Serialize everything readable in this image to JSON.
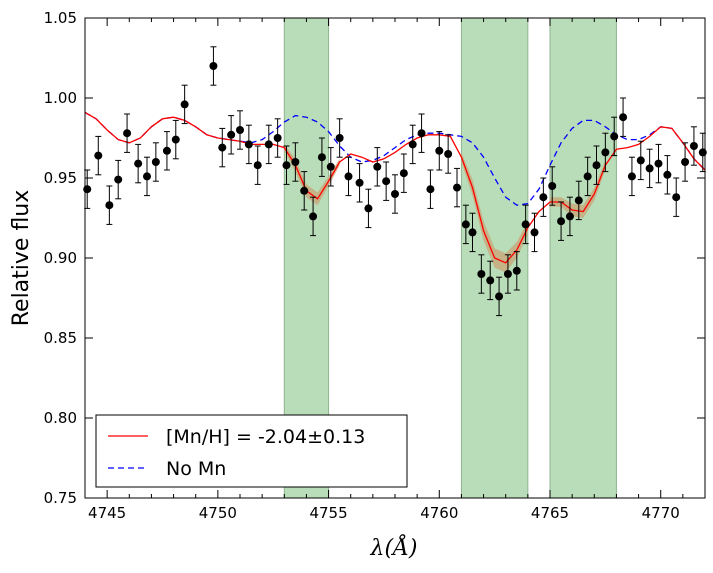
{
  "chart_data": {
    "type": "line",
    "title": "",
    "xlabel": "λ(Å)",
    "ylabel": "Relative flux",
    "xlim": [
      4744,
      4772
    ],
    "ylim": [
      0.75,
      1.05
    ],
    "xticks": [
      4745,
      4750,
      4755,
      4760,
      4765,
      4770
    ],
    "yticks": [
      0.75,
      0.8,
      0.85,
      0.9,
      0.95,
      1.0,
      1.05
    ],
    "xtick_labels": [
      "4745",
      "4750",
      "4755",
      "4760",
      "4765",
      "4770"
    ],
    "ytick_labels": [
      "0.75",
      "0.80",
      "0.85",
      "0.90",
      "0.95",
      "1.00",
      "1.05"
    ],
    "grid": false,
    "legend_position": "bottom-left",
    "shaded_regions": [
      {
        "x0": 4753.0,
        "x1": 4755.0,
        "color": "#b9dcb9"
      },
      {
        "x0": 4761.0,
        "x1": 4764.0,
        "color": "#b9dcb9"
      },
      {
        "x0": 4765.0,
        "x1": 4768.0,
        "color": "#b9dcb9"
      }
    ],
    "series": [
      {
        "name": "[Mn/H] = -2.04±0.13",
        "style": "solid",
        "color": "#ff0000",
        "x": [
          4744.0,
          4744.5,
          4745.0,
          4745.5,
          4746.0,
          4746.5,
          4747.0,
          4747.5,
          4748.0,
          4748.5,
          4749.0,
          4749.5,
          4750.0,
          4750.5,
          4751.0,
          4751.5,
          4752.0,
          4752.5,
          4753.0,
          4753.5,
          4754.0,
          4754.5,
          4755.0,
          4755.5,
          4756.0,
          4756.5,
          4757.0,
          4757.5,
          4758.0,
          4758.5,
          4759.0,
          4759.5,
          4760.0,
          4760.5,
          4761.0,
          4761.5,
          4762.0,
          4762.5,
          4763.0,
          4763.5,
          4764.0,
          4764.5,
          4765.0,
          4765.5,
          4766.0,
          4766.5,
          4767.0,
          4767.5,
          4768.0,
          4768.5,
          4769.0,
          4769.5,
          4770.0,
          4770.5,
          4771.0,
          4771.5,
          4772.0
        ],
        "y": [
          0.991,
          0.987,
          0.98,
          0.974,
          0.972,
          0.975,
          0.982,
          0.987,
          0.988,
          0.986,
          0.982,
          0.977,
          0.975,
          0.974,
          0.973,
          0.971,
          0.971,
          0.971,
          0.969,
          0.958,
          0.942,
          0.937,
          0.948,
          0.96,
          0.965,
          0.963,
          0.96,
          0.962,
          0.966,
          0.971,
          0.975,
          0.977,
          0.977,
          0.976,
          0.963,
          0.944,
          0.917,
          0.9,
          0.897,
          0.905,
          0.919,
          0.929,
          0.935,
          0.935,
          0.93,
          0.929,
          0.94,
          0.958,
          0.968,
          0.969,
          0.971,
          0.976,
          0.982,
          0.981,
          0.972,
          0.962,
          0.955
        ]
      },
      {
        "name": "No Mn",
        "style": "dashed",
        "color": "#0000ff",
        "x": [
          4744.0,
          4744.5,
          4745.0,
          4745.5,
          4746.0,
          4746.5,
          4747.0,
          4747.5,
          4748.0,
          4748.5,
          4749.0,
          4749.5,
          4750.0,
          4750.5,
          4751.0,
          4751.5,
          4752.0,
          4752.5,
          4753.0,
          4753.5,
          4754.0,
          4754.5,
          4755.0,
          4755.5,
          4756.0,
          4756.5,
          4757.0,
          4757.5,
          4758.0,
          4758.5,
          4759.0,
          4759.5,
          4760.0,
          4760.5,
          4761.0,
          4761.5,
          4762.0,
          4762.5,
          4763.0,
          4763.5,
          4764.0,
          4764.5,
          4765.0,
          4765.5,
          4766.0,
          4766.5,
          4767.0,
          4767.5,
          4768.0,
          4768.5,
          4769.0,
          4769.5,
          4770.0,
          4770.5,
          4771.0,
          4771.5,
          4772.0
        ],
        "y": [
          0.991,
          0.987,
          0.98,
          0.974,
          0.972,
          0.975,
          0.982,
          0.987,
          0.988,
          0.986,
          0.982,
          0.977,
          0.975,
          0.974,
          0.973,
          0.972,
          0.974,
          0.979,
          0.985,
          0.989,
          0.988,
          0.985,
          0.979,
          0.97,
          0.963,
          0.96,
          0.961,
          0.964,
          0.969,
          0.974,
          0.977,
          0.978,
          0.978,
          0.977,
          0.976,
          0.972,
          0.963,
          0.95,
          0.938,
          0.933,
          0.934,
          0.943,
          0.958,
          0.972,
          0.981,
          0.986,
          0.986,
          0.982,
          0.977,
          0.974,
          0.974,
          0.977,
          0.982,
          0.981,
          0.972,
          0.962,
          0.955
        ]
      },
      {
        "name": "",
        "style": "points_with_errorbars",
        "color": "#000000",
        "x": [
          4744.1,
          4744.6,
          4745.1,
          4745.5,
          4745.9,
          4746.4,
          4746.8,
          4747.2,
          4747.7,
          4748.1,
          4748.5,
          4749.8,
          4750.2,
          4750.6,
          4751.0,
          4751.4,
          4751.8,
          4752.3,
          4752.7,
          4753.1,
          4753.5,
          4753.9,
          4754.3,
          4754.7,
          4755.1,
          4755.5,
          4755.9,
          4756.4,
          4756.8,
          4757.2,
          4757.6,
          4758.0,
          4758.4,
          4758.8,
          4759.2,
          4759.6,
          4760.0,
          4760.4,
          4760.8,
          4761.2,
          4761.5,
          4761.9,
          4762.3,
          4762.7,
          4763.1,
          4763.5,
          4763.9,
          4764.3,
          4764.7,
          4765.1,
          4765.5,
          4765.9,
          4766.3,
          4766.7,
          4767.1,
          4767.5,
          4767.9,
          4768.3,
          4768.7,
          4769.1,
          4769.5,
          4769.9,
          4770.3,
          4770.7,
          4771.1,
          4771.5,
          4771.9
        ],
        "y": [
          0.943,
          0.964,
          0.933,
          0.949,
          0.978,
          0.959,
          0.951,
          0.96,
          0.967,
          0.974,
          0.996,
          1.02,
          0.969,
          0.977,
          0.98,
          0.971,
          0.958,
          0.971,
          0.975,
          0.958,
          0.96,
          0.942,
          0.926,
          0.963,
          0.957,
          0.975,
          0.951,
          0.947,
          0.931,
          0.957,
          0.948,
          0.94,
          0.953,
          0.971,
          0.978,
          0.943,
          0.967,
          0.965,
          0.944,
          0.921,
          0.916,
          0.89,
          0.886,
          0.876,
          0.89,
          0.892,
          0.921,
          0.916,
          0.938,
          0.945,
          0.923,
          0.926,
          0.936,
          0.951,
          0.958,
          0.966,
          0.976,
          0.988,
          0.951,
          0.961,
          0.956,
          0.959,
          0.952,
          0.938,
          0.96,
          0.97,
          0.966
        ],
        "yerr": 0.012
      }
    ],
    "uncertainty_band": {
      "color": "#c8a87a",
      "x": [
        4753.0,
        4753.5,
        4754.0,
        4754.5,
        4755.0,
        4755.5,
        4761.0,
        4761.5,
        4762.0,
        4762.5,
        4763.0,
        4763.5,
        4764.0,
        4765.0,
        4765.5,
        4766.0,
        4766.5,
        4767.0,
        4767.5
      ],
      "y_low": [
        0.967,
        0.954,
        0.938,
        0.933,
        0.945,
        0.958,
        0.96,
        0.939,
        0.911,
        0.894,
        0.891,
        0.9,
        0.915,
        0.932,
        0.932,
        0.926,
        0.925,
        0.936,
        0.955
      ],
      "y_high": [
        0.971,
        0.962,
        0.946,
        0.941,
        0.951,
        0.962,
        0.966,
        0.949,
        0.923,
        0.906,
        0.903,
        0.91,
        0.923,
        0.938,
        0.938,
        0.934,
        0.933,
        0.944,
        0.961
      ]
    },
    "legend": [
      {
        "label": "[Mn/H] = -2.04±0.13",
        "style": "solid",
        "color": "#ff0000"
      },
      {
        "label": "No Mn",
        "style": "dashed",
        "color": "#0000ff"
      }
    ]
  }
}
